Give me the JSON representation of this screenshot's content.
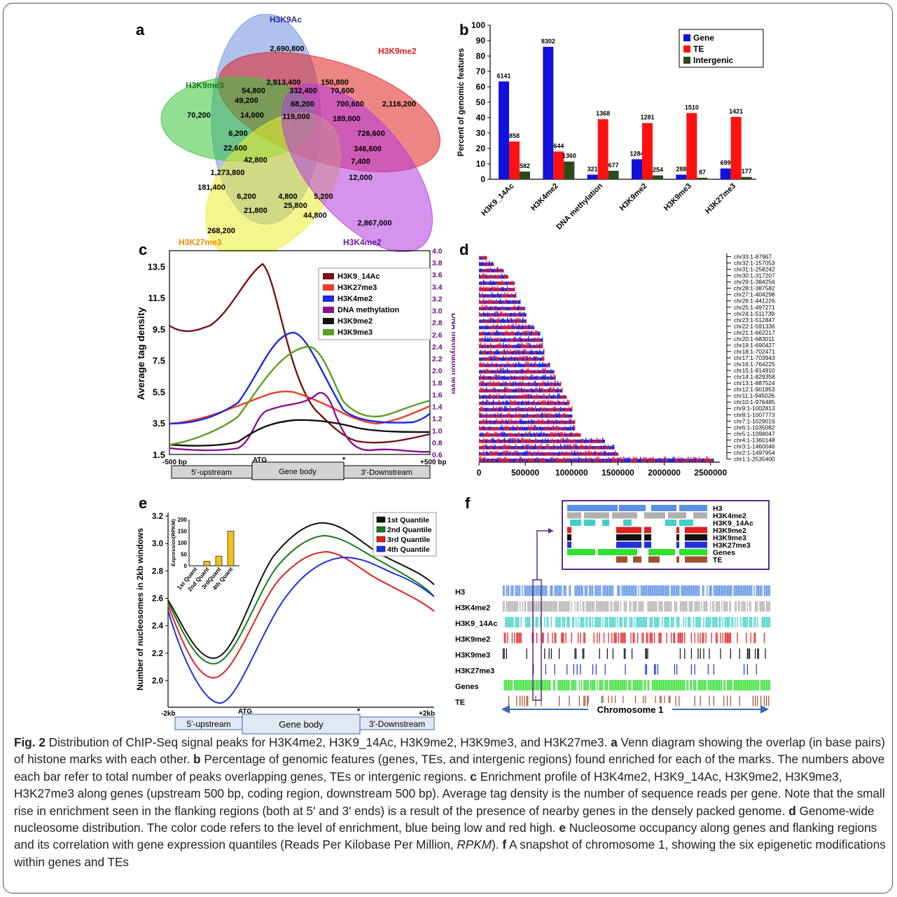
{
  "panels": {
    "a": "a",
    "b": "b",
    "c": "c",
    "d": "d",
    "e": "e",
    "f": "f"
  },
  "venn": {
    "sets": [
      {
        "name": "H3K9Ac",
        "color": "#6d8fe0"
      },
      {
        "name": "H3K9me2",
        "color": "#e02020"
      },
      {
        "name": "H3K9me3",
        "color": "#38c43a"
      },
      {
        "name": "H3K27me3",
        "color": "#eded30"
      },
      {
        "name": "H3K4me2",
        "color": "#b53ae0"
      }
    ],
    "labels": [
      "2,690,800",
      "2,913,400",
      "150,800",
      "54,800",
      "332,400",
      "70,600",
      "49,200",
      "68,200",
      "700,600",
      "2,116,200",
      "70,200",
      "14,000",
      "189,000",
      "6,200",
      "119,000",
      "726,600",
      "22,600",
      "346,600",
      "42,800",
      "7,400",
      "1,273,800",
      "12,000",
      "181,400",
      "6,200",
      "4,800",
      "5,200",
      "21,800",
      "25,800",
      "44,800",
      "268,200",
      "2,867,000"
    ]
  },
  "chart_data": [
    {
      "id": "b",
      "type": "bar",
      "categories": [
        "H3K9_14Ac",
        "H3K4me2",
        "DNA methylation",
        "H3K9me2",
        "H3K9me3",
        "H3K27me3"
      ],
      "series": [
        {
          "name": "Gene",
          "color": "#1111dd",
          "values": [
            63.5,
            86,
            3,
            13,
            3,
            7
          ],
          "labels": [
            "6141",
            "8302",
            "321",
            "1284",
            "288",
            "699"
          ]
        },
        {
          "name": "TE",
          "color": "#ff1111",
          "values": [
            24.5,
            18,
            39,
            36.5,
            43,
            40.5
          ],
          "labels": [
            "858",
            "644",
            "1368",
            "1281",
            "1510",
            "1421"
          ]
        },
        {
          "name": "Intergenic",
          "color": "#2b4a1a",
          "values": [
            5,
            11.5,
            5.5,
            2.5,
            1,
            1.5
          ],
          "labels": [
            "582",
            "1360",
            "677",
            "254",
            "87",
            "177"
          ]
        }
      ],
      "ylabel": "Percent of genomic features",
      "ylim": [
        0,
        100
      ],
      "yticks": [
        0,
        10,
        20,
        30,
        40,
        50,
        60,
        70,
        80,
        90,
        100
      ]
    },
    {
      "id": "c",
      "type": "line",
      "ylabel": "Average tag density",
      "y2label": "DNA methylation level",
      "yticks": [
        "1.5",
        "3.5",
        "5.5",
        "7.5",
        "9.5",
        "11.5",
        "13.5"
      ],
      "y2ticks": [
        "0.6",
        "0.8",
        "1.0",
        "1.2",
        "1.4",
        "1.6",
        "1.8",
        "2.0",
        "2.2",
        "2.4",
        "2.6",
        "2.8",
        "3.0",
        "3.2",
        "3.4",
        "3.6",
        "3.8",
        "4.0"
      ],
      "xlabels": {
        "left": "-500 bp",
        "atg": "ATG",
        "star": "*",
        "right": "+500 bp"
      },
      "regions": [
        "5'-upstream",
        "Gene body",
        "3'-Downstream"
      ],
      "series": [
        {
          "name": "H3K9_14Ac",
          "color": "#7b1010"
        },
        {
          "name": "H3K27me3",
          "color": "#f03a2a"
        },
        {
          "name": "H3K4me2",
          "color": "#1a2ae0"
        },
        {
          "name": "DNA methylation",
          "color": "#8a1090"
        },
        {
          "name": "H3K9me2",
          "color": "#111111"
        },
        {
          "name": "H3K9me3",
          "color": "#5aa020"
        }
      ]
    },
    {
      "id": "d",
      "type": "bar",
      "chromosomes": [
        "chr33:1-87967",
        "chr32:1-157053",
        "chr31:1-258242",
        "chr30:1-317207",
        "chr29:1-384256",
        "chr28:1-387582",
        "chr27:1-404298",
        "chr26:1-441226",
        "chr25:1-497271",
        "chr24:1-511739",
        "chr23:1-512847",
        "chr22:1-591336",
        "chr21:1-662217",
        "chr20:1-683011",
        "chr19:1-690427",
        "chr18:1-702471",
        "chr17:1-703943",
        "chr16:1-764225",
        "chr15:1-814910",
        "chr14:1-829358",
        "chr13:1-887524",
        "chr12:1-901853",
        "chr11:1-945026",
        "chr10:1-976485",
        "chr9:1-1002813",
        "chr8:1-1007773",
        "chr7:1-1029019",
        "chr6:1-1035082",
        "chr5:1-1098047",
        "chr4:1-1360148",
        "chr3:1-1460046",
        "chr2:1-1497954",
        "chr1:1-2535400"
      ],
      "lengths": [
        87967,
        157053,
        258242,
        317207,
        384256,
        387582,
        404298,
        441226,
        497271,
        511739,
        512847,
        591336,
        662217,
        683011,
        690427,
        702471,
        703943,
        764225,
        814910,
        829358,
        887524,
        901853,
        945026,
        976485,
        1002813,
        1007773,
        1029019,
        1035082,
        1098047,
        1360148,
        1460046,
        1497954,
        2535400
      ],
      "xticks": [
        "0",
        "500000",
        "1000000",
        "1500000",
        "2000000",
        "2500000"
      ],
      "xlim": [
        0,
        2600000
      ]
    },
    {
      "id": "e",
      "type": "line",
      "ylabel": "Number of nucleosomes in 2kb windows",
      "yticks": [
        "2.0",
        "2.2",
        "2.4",
        "2.6",
        "2.8",
        "3.0",
        "3.2"
      ],
      "xlabels": {
        "left": "-2kb",
        "atg": "ATG",
        "star": "*",
        "right": "+2kb"
      },
      "regions": [
        "5'-upstream",
        "Gene body",
        "3'-Downstream"
      ],
      "series": [
        {
          "name": "1st Quantile",
          "color": "#111111"
        },
        {
          "name": "2nd Quantile",
          "color": "#1a7a1a"
        },
        {
          "name": "3rd Quantile",
          "color": "#e02020"
        },
        {
          "name": "4th Quantile",
          "color": "#2030e0"
        }
      ],
      "inset": {
        "ylabel": "Expression(RPKM)",
        "yticks": [
          "0",
          "50",
          "100",
          "150",
          "200"
        ],
        "categories": [
          "1st Quant",
          "2nd Quant",
          "3rdQuant",
          "4th Quant"
        ],
        "values": [
          0,
          20,
          42,
          150
        ],
        "ylim": [
          0,
          200
        ]
      }
    }
  ],
  "tracks": {
    "names": [
      "H3",
      "H3K4me2",
      "H3K9_14Ac",
      "H3K9me2",
      "H3K9me3",
      "H3K27me3",
      "Genes",
      "TE"
    ],
    "zoom_names": [
      "H3",
      "H3K4me2",
      "H3K9_14Ac",
      "H3K9me2",
      "H3K9me3",
      "H3K27me3",
      "Genes",
      "TE"
    ],
    "chromosome": "Chromosome 1"
  },
  "caption": {
    "fig": "Fig. 2",
    "title": "Distribution of ChIP-Seq signal peaks for H3K4me2, H3K9_14Ac, H3K9me2, H3K9me3, and H3K27me3.",
    "a": "Venn diagram showing the overlap (in base pairs) of histone marks with each other.",
    "b": "Percentage of genomic features (genes, TEs, and intergenic regions) found enriched for each of the marks. The numbers above each bar refer to total number of peaks overlapping genes, TEs or intergenic regions.",
    "c": "Enrichment profile of H3K4me2, H3K9_14Ac, H3K9me2, H3K9me3, H3K27me3 along genes (upstream 500 bp, coding region, downstream 500 bp). Average tag density is the number of sequence reads per gene. Note that the small rise in enrichment seen in the flanking regions (both at 5′ and 3′ ends) is a result of the presence of nearby genes in the densely packed genome.",
    "d": "Genome-wide nucleosome distribution. The color code refers to the level of enrichment, blue being low and red high.",
    "e1": "Nucleosome occupancy along genes and flanking regions and its correlation with gene expression quantiles (Reads Per Kilobase Per Million, ",
    "e_rpkm": "RPKM",
    "e2": ").",
    "f": "A snapshot of chromosome 1, showing the six epigenetic modifications within genes and TEs"
  }
}
